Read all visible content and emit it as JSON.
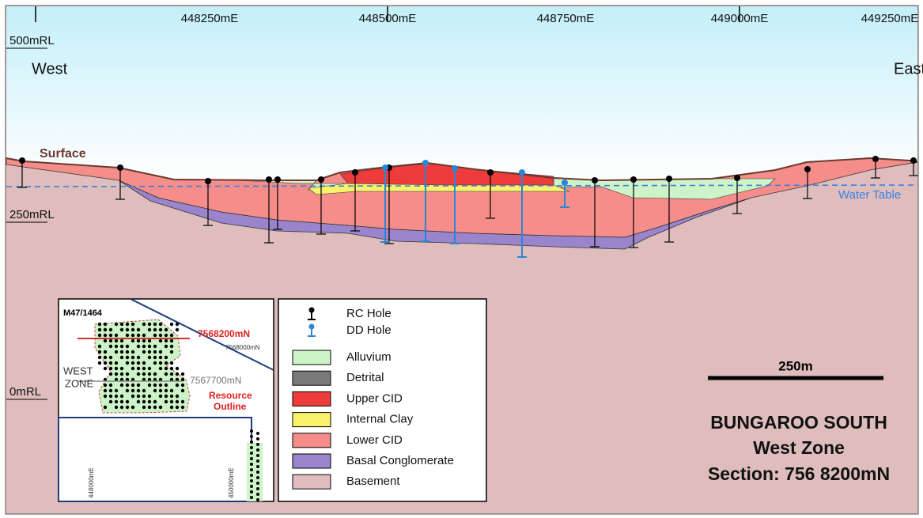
{
  "section": {
    "eastings": [
      "448250mE",
      "448500mE",
      "448750mE",
      "449000mE",
      "449250mE"
    ],
    "rl_labels": [
      "500mRL",
      "250mRL",
      "0mRL"
    ],
    "west": "West",
    "east": "East",
    "surface": "Surface",
    "water_table": "Water Table"
  },
  "inset": {
    "tenement": "M47/1464",
    "section_line": "7568200mN",
    "northing_upper": "7568000mN",
    "northing_lower": "7567700mN",
    "zone": [
      "WEST",
      "ZONE"
    ],
    "resource_outline": [
      "Resource",
      "Outline"
    ],
    "eastings": [
      "448000mE",
      "450000mE"
    ]
  },
  "legend": {
    "holes": [
      {
        "label": "RC Hole",
        "color": "#000000"
      },
      {
        "label": "DD Hole",
        "color": "#2a86d6"
      }
    ],
    "units": [
      {
        "label": "Alluvium",
        "color": "#cdf3c8"
      },
      {
        "label": "Detrital",
        "color": "#7a7a7a"
      },
      {
        "label": "Upper CID",
        "color": "#ee3b3b"
      },
      {
        "label": "Internal Clay",
        "color": "#f8f36a"
      },
      {
        "label": "Lower CID",
        "color": "#f58d8a"
      },
      {
        "label": "Basal Conglomerate",
        "color": "#9a84cc"
      },
      {
        "label": "Basement",
        "color": "#dfbdbd"
      }
    ]
  },
  "scale_bar": "250m",
  "title": [
    "BUNGAROO SOUTH",
    "West Zone",
    "Section: 756 8200mN"
  ]
}
